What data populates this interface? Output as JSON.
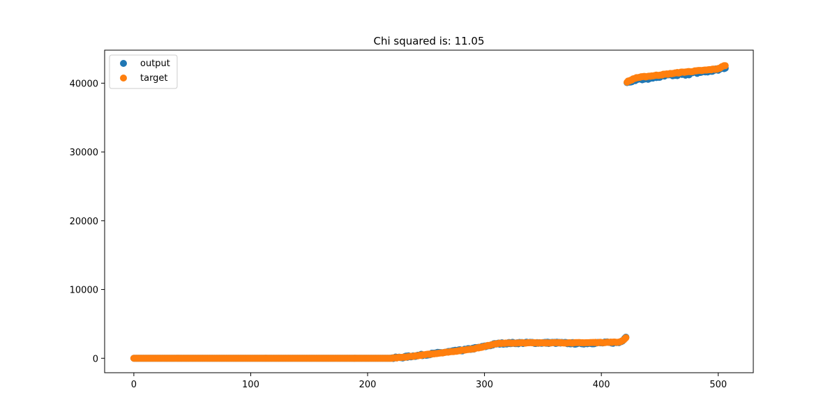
{
  "chart_data": {
    "type": "scatter",
    "title": "Chi squared is: 11.05",
    "xlabel": "",
    "ylabel": "",
    "xlim": [
      -25,
      530
    ],
    "ylim": [
      -2100,
      44800
    ],
    "x_ticks": [
      0,
      100,
      200,
      300,
      400,
      500
    ],
    "y_ticks": [
      0,
      10000,
      20000,
      30000,
      40000
    ],
    "x_tick_labels": [
      "0",
      "100",
      "200",
      "300",
      "400",
      "500"
    ],
    "y_tick_labels": [
      "0",
      "10000",
      "20000",
      "30000",
      "40000"
    ],
    "grid": false,
    "legend": {
      "placement": "upper-left"
    },
    "series": [
      {
        "name": "output",
        "color": "#1f77b4",
        "segments": [
          {
            "x0": 0,
            "x1": 220,
            "y": [
              [
                0,
                0
              ],
              [
                220,
                0
              ]
            ]
          },
          {
            "x0": 221,
            "x1": 421,
            "y": [
              [
                220,
                0
              ],
              [
                230,
                150
              ],
              [
                240,
                350
              ],
              [
                250,
                550
              ],
              [
                260,
                750
              ],
              [
                270,
                950
              ],
              [
                280,
                1150
              ],
              [
                290,
                1400
              ],
              [
                300,
                1700
              ],
              [
                310,
                2100
              ],
              [
                320,
                2200
              ],
              [
                340,
                2250
              ],
              [
                360,
                2250
              ],
              [
                380,
                2150
              ],
              [
                400,
                2250
              ],
              [
                415,
                2300
              ],
              [
                418,
                2600
              ],
              [
                421,
                3100
              ]
            ],
            "noise": 120
          },
          {
            "x0": 422,
            "x1": 506,
            "y": [
              [
                422,
                40200
              ],
              [
                430,
                40600
              ],
              [
                440,
                40750
              ],
              [
                450,
                40950
              ],
              [
                460,
                41150
              ],
              [
                470,
                41300
              ],
              [
                480,
                41500
              ],
              [
                490,
                41700
              ],
              [
                500,
                41950
              ],
              [
                506,
                42300
              ]
            ],
            "noise": 200
          }
        ]
      },
      {
        "name": "target",
        "color": "#ff7f0e",
        "segments": [
          {
            "x0": 0,
            "x1": 220,
            "y": [
              [
                0,
                0
              ],
              [
                220,
                0
              ]
            ]
          },
          {
            "x0": 221,
            "x1": 421,
            "y": [
              [
                220,
                0
              ],
              [
                230,
                130
              ],
              [
                240,
                330
              ],
              [
                250,
                530
              ],
              [
                260,
                730
              ],
              [
                270,
                930
              ],
              [
                280,
                1130
              ],
              [
                290,
                1380
              ],
              [
                300,
                1700
              ],
              [
                310,
                2150
              ],
              [
                320,
                2200
              ],
              [
                340,
                2250
              ],
              [
                360,
                2250
              ],
              [
                380,
                2250
              ],
              [
                400,
                2300
              ],
              [
                415,
                2350
              ],
              [
                418,
                2550
              ],
              [
                421,
                2950
              ]
            ],
            "noise": 40
          },
          {
            "x0": 422,
            "x1": 506,
            "y": [
              [
                422,
                40200
              ],
              [
                430,
                40800
              ],
              [
                440,
                41000
              ],
              [
                450,
                41200
              ],
              [
                460,
                41400
              ],
              [
                470,
                41600
              ],
              [
                480,
                41750
              ],
              [
                490,
                41900
              ],
              [
                500,
                42100
              ],
              [
                506,
                42600
              ]
            ],
            "noise": 60
          }
        ]
      }
    ]
  }
}
